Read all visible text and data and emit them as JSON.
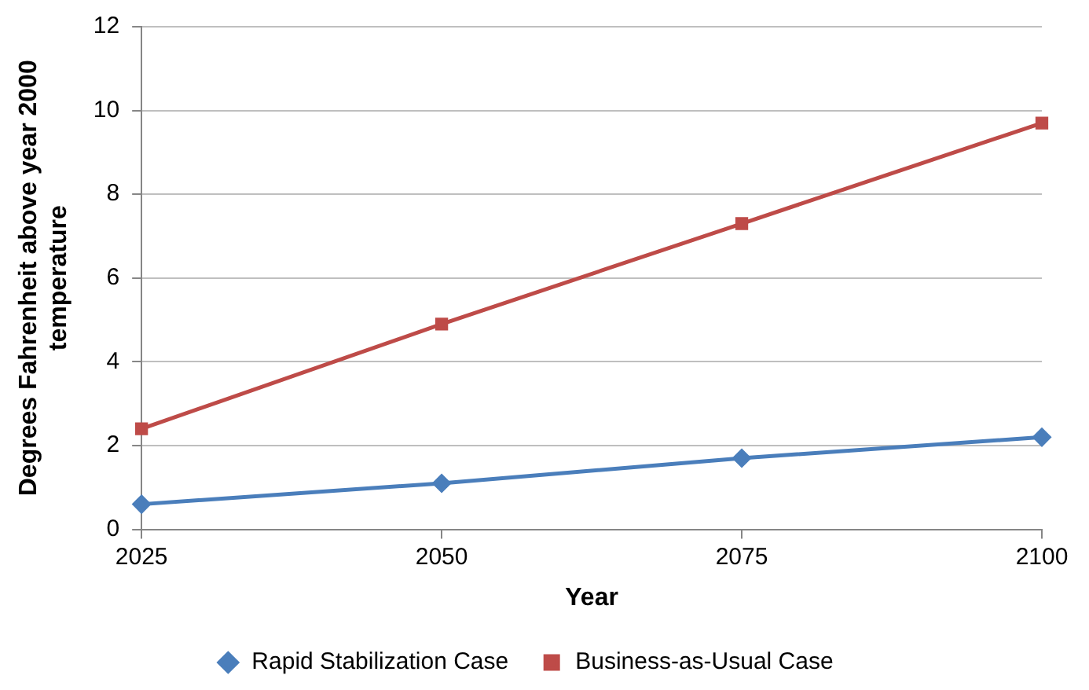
{
  "chart_data": {
    "type": "line",
    "xlabel": "Year",
    "ylabel": "Degrees Fahrenheit above year 2000 temperature",
    "x": [
      2025,
      2050,
      2075,
      2100
    ],
    "xlim": [
      2025,
      2100
    ],
    "xticks": [
      2025,
      2050,
      2075,
      2100
    ],
    "ylim": [
      0,
      12
    ],
    "yticks": [
      0,
      2,
      4,
      6,
      8,
      10,
      12
    ],
    "grid": "y",
    "legend": "bottom",
    "line_style": "solid",
    "series": [
      {
        "name": "Rapid Stabilization Case",
        "color": "#4a7ebb",
        "marker": "diamond",
        "values": [
          0.6,
          1.1,
          1.7,
          2.2
        ]
      },
      {
        "name": "Business-as-Usual Case",
        "color": "#be4b48",
        "marker": "square",
        "values": [
          2.4,
          4.9,
          7.3,
          9.7
        ]
      }
    ]
  }
}
